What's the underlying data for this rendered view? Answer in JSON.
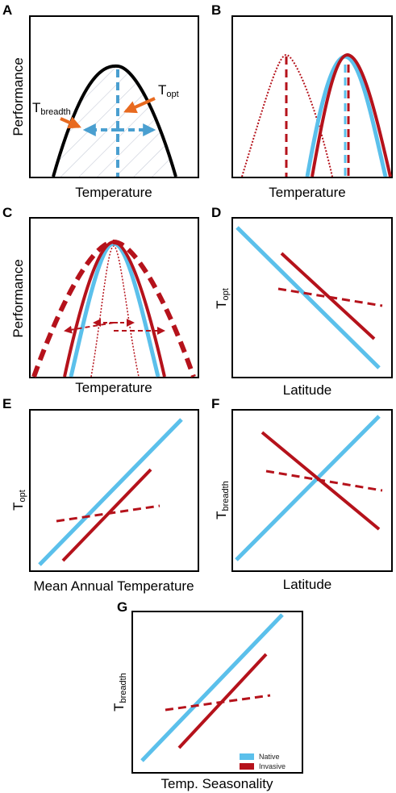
{
  "colors": {
    "native": "#5bc0eb",
    "invasive": "#b5121b",
    "arrow": "#e86a1f",
    "guide": "#4a9fd0",
    "hatch": "#c8ccd8"
  },
  "panels": {
    "A": {
      "letter": "A",
      "ylabel": "Performance",
      "xlabel": "Temperature",
      "t_breadth_main": "T",
      "t_breadth_sub": "breadth",
      "t_opt_main": "T",
      "t_opt_sub": "opt"
    },
    "B": {
      "letter": "B",
      "xlabel": "Temperature"
    },
    "C": {
      "letter": "C",
      "ylabel": "Performance",
      "xlabel": "Temperature"
    },
    "D": {
      "letter": "D",
      "ylabel_main": "T",
      "ylabel_sub": "opt",
      "xlabel": "Latitude"
    },
    "E": {
      "letter": "E",
      "ylabel_main": "T",
      "ylabel_sub": "opt",
      "xlabel": "Mean Annual Temperature"
    },
    "F": {
      "letter": "F",
      "ylabel_main": "T",
      "ylabel_sub": "breadth",
      "xlabel": "Latitude"
    },
    "G": {
      "letter": "G",
      "ylabel_main": "T",
      "ylabel_sub": "breadth",
      "xlabel": "Temp. Seasonality"
    }
  },
  "legend": {
    "native": "Native",
    "invasive": "Invasive"
  }
}
